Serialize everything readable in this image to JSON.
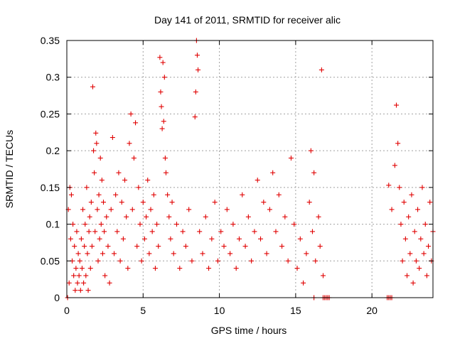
{
  "chart_data": {
    "type": "scatter",
    "title": "Day 141 of 2011, SRMTID for receiver alic",
    "xlabel": "GPS time / hours",
    "ylabel": "SRMTID / TECUs",
    "xlim": [
      0,
      24
    ],
    "ylim": [
      0,
      0.35
    ],
    "xticks": [
      0,
      5,
      10,
      15,
      20
    ],
    "yticks": [
      0,
      0.05,
      0.1,
      0.15,
      0.2,
      0.25,
      0.3,
      0.35
    ],
    "xtick_labels": [
      "0",
      "5",
      "10",
      "15",
      "20"
    ],
    "ytick_labels": [
      "0",
      "0.05",
      "0.1",
      "0.15",
      "0.2",
      "0.25",
      "0.3",
      "0.35"
    ],
    "grid": true,
    "marker": "plus",
    "color": "#e00000",
    "series": [
      {
        "values": [
          [
            0.05,
            0.0
          ],
          [
            0.1,
            0.12
          ],
          [
            0.15,
            0.02
          ],
          [
            0.2,
            0.15
          ],
          [
            0.25,
            0.08
          ],
          [
            0.3,
            0.14
          ],
          [
            0.35,
            0.05
          ],
          [
            0.4,
            0.1
          ],
          [
            0.45,
            0.03
          ],
          [
            0.5,
            0.07
          ],
          [
            0.55,
            0.01
          ],
          [
            0.6,
            0.04
          ],
          [
            0.65,
            0.09
          ],
          [
            0.7,
            0.02
          ],
          [
            0.75,
            0.06
          ],
          [
            0.8,
            0.03
          ],
          [
            0.85,
            0.05
          ],
          [
            0.9,
            0.01
          ],
          [
            0.95,
            0.08
          ],
          [
            1.0,
            0.04
          ],
          [
            1.05,
            0.12
          ],
          [
            1.1,
            0.02
          ],
          [
            1.15,
            0.07
          ],
          [
            1.2,
            0.1
          ],
          [
            1.25,
            0.03
          ],
          [
            1.3,
            0.15
          ],
          [
            1.35,
            0.06
          ],
          [
            1.4,
            0.01
          ],
          [
            1.45,
            0.09
          ],
          [
            1.5,
            0.11
          ],
          [
            1.55,
            0.04
          ],
          [
            1.6,
            0.13
          ],
          [
            1.65,
            0.07
          ],
          [
            1.7,
            0.287
          ],
          [
            1.75,
            0.2
          ],
          [
            1.8,
            0.17
          ],
          [
            1.85,
            0.09
          ],
          [
            1.9,
            0.224
          ],
          [
            1.95,
            0.21
          ],
          [
            2.0,
            0.12
          ],
          [
            2.05,
            0.05
          ],
          [
            2.1,
            0.14
          ],
          [
            2.15,
            0.08
          ],
          [
            2.2,
            0.19
          ],
          [
            2.25,
            0.1
          ],
          [
            2.3,
            0.16
          ],
          [
            2.35,
            0.06
          ],
          [
            2.4,
            0.13
          ],
          [
            2.45,
            0.09
          ],
          [
            2.5,
            0.03
          ],
          [
            2.6,
            0.11
          ],
          [
            2.7,
            0.07
          ],
          [
            2.8,
            0.02
          ],
          [
            2.9,
            0.12
          ],
          [
            3.0,
            0.218
          ],
          [
            3.1,
            0.06
          ],
          [
            3.2,
            0.14
          ],
          [
            3.3,
            0.09
          ],
          [
            3.4,
            0.17
          ],
          [
            3.5,
            0.05
          ],
          [
            3.6,
            0.13
          ],
          [
            3.7,
            0.08
          ],
          [
            3.8,
            0.16
          ],
          [
            3.9,
            0.11
          ],
          [
            4.0,
            0.04
          ],
          [
            4.1,
            0.21
          ],
          [
            4.2,
            0.25
          ],
          [
            4.3,
            0.12
          ],
          [
            4.4,
            0.19
          ],
          [
            4.5,
            0.238
          ],
          [
            4.6,
            0.07
          ],
          [
            4.7,
            0.15
          ],
          [
            4.8,
            0.1
          ],
          [
            4.9,
            0.05
          ],
          [
            5.0,
            0.13
          ],
          [
            5.1,
            0.08
          ],
          [
            5.2,
            0.11
          ],
          [
            5.3,
            0.16
          ],
          [
            5.4,
            0.06
          ],
          [
            5.5,
            0.12
          ],
          [
            5.6,
            0.09
          ],
          [
            5.7,
            0.14
          ],
          [
            5.8,
            0.04
          ],
          [
            5.9,
            0.1
          ],
          [
            6.0,
            0.07
          ],
          [
            6.1,
            0.327
          ],
          [
            6.15,
            0.28
          ],
          [
            6.2,
            0.26
          ],
          [
            6.25,
            0.23
          ],
          [
            6.3,
            0.32
          ],
          [
            6.35,
            0.24
          ],
          [
            6.4,
            0.3
          ],
          [
            6.45,
            0.19
          ],
          [
            6.5,
            0.17
          ],
          [
            6.6,
            0.14
          ],
          [
            6.7,
            0.11
          ],
          [
            6.8,
            0.08
          ],
          [
            6.9,
            0.13
          ],
          [
            7.0,
            0.06
          ],
          [
            7.2,
            0.1
          ],
          [
            7.4,
            0.04
          ],
          [
            7.6,
            0.09
          ],
          [
            7.8,
            0.07
          ],
          [
            8.0,
            0.12
          ],
          [
            8.2,
            0.05
          ],
          [
            8.4,
            0.246
          ],
          [
            8.45,
            0.28
          ],
          [
            8.5,
            0.35
          ],
          [
            8.55,
            0.33
          ],
          [
            8.6,
            0.31
          ],
          [
            8.7,
            0.09
          ],
          [
            8.9,
            0.06
          ],
          [
            9.1,
            0.11
          ],
          [
            9.3,
            0.04
          ],
          [
            9.5,
            0.08
          ],
          [
            9.7,
            0.13
          ],
          [
            9.9,
            0.05
          ],
          [
            10.1,
            0.09
          ],
          [
            10.3,
            0.07
          ],
          [
            10.5,
            0.12
          ],
          [
            10.7,
            0.06
          ],
          [
            10.9,
            0.1
          ],
          [
            11.1,
            0.04
          ],
          [
            11.3,
            0.08
          ],
          [
            11.5,
            0.14
          ],
          [
            11.7,
            0.07
          ],
          [
            11.9,
            0.11
          ],
          [
            12.1,
            0.05
          ],
          [
            12.3,
            0.09
          ],
          [
            12.5,
            0.16
          ],
          [
            12.7,
            0.08
          ],
          [
            12.9,
            0.13
          ],
          [
            13.1,
            0.06
          ],
          [
            13.3,
            0.12
          ],
          [
            13.5,
            0.17
          ],
          [
            13.7,
            0.09
          ],
          [
            13.9,
            0.14
          ],
          [
            14.1,
            0.07
          ],
          [
            14.3,
            0.11
          ],
          [
            14.5,
            0.05
          ],
          [
            14.7,
            0.19
          ],
          [
            14.9,
            0.1
          ],
          [
            15.1,
            0.04
          ],
          [
            15.3,
            0.08
          ],
          [
            15.5,
            0.02
          ],
          [
            15.7,
            0.06
          ],
          [
            15.9,
            0.13
          ],
          [
            16.0,
            0.2
          ],
          [
            16.1,
            0.09
          ],
          [
            16.2,
            0.17
          ],
          [
            16.3,
            0.05
          ],
          [
            16.5,
            0.11
          ],
          [
            16.6,
            0.07
          ],
          [
            16.7,
            0.31
          ],
          [
            16.8,
            0.03
          ],
          [
            21.1,
            0.153
          ],
          [
            21.3,
            0.12
          ],
          [
            21.5,
            0.18
          ],
          [
            21.6,
            0.262
          ],
          [
            21.7,
            0.21
          ],
          [
            21.8,
            0.15
          ],
          [
            21.9,
            0.1
          ],
          [
            22.0,
            0.05
          ],
          [
            22.1,
            0.13
          ],
          [
            22.2,
            0.08
          ],
          [
            22.3,
            0.03
          ],
          [
            22.4,
            0.11
          ],
          [
            22.5,
            0.06
          ],
          [
            22.6,
            0.14
          ],
          [
            22.7,
            0.02
          ],
          [
            22.8,
            0.09
          ],
          [
            22.9,
            0.05
          ],
          [
            23.0,
            0.12
          ],
          [
            23.1,
            0.04
          ],
          [
            23.2,
            0.08
          ],
          [
            23.3,
            0.15
          ],
          [
            23.4,
            0.06
          ],
          [
            23.5,
            0.1
          ],
          [
            23.6,
            0.03
          ],
          [
            23.7,
            0.07
          ],
          [
            23.8,
            0.13
          ],
          [
            23.9,
            0.05
          ],
          [
            24.0,
            0.09
          ],
          [
            16.2,
            0.0
          ],
          [
            16.8,
            0.0
          ],
          [
            16.9,
            0.0
          ],
          [
            17.0,
            0.0
          ],
          [
            17.1,
            0.0
          ],
          [
            17.2,
            0.0
          ],
          [
            21.0,
            0.0
          ],
          [
            21.1,
            0.0
          ],
          [
            21.2,
            0.0
          ],
          [
            21.3,
            0.0
          ]
        ]
      }
    ]
  }
}
